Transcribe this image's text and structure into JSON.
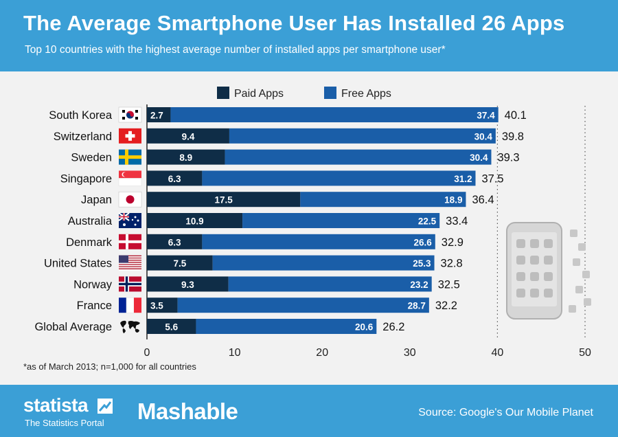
{
  "header": {
    "title": "The Average Smartphone User Has Installed 26 Apps",
    "subtitle": "Top 10 countries with the highest average number of installed apps per smartphone user*"
  },
  "footnote": "*as of March 2013; n=1,000 for all countries",
  "footer": {
    "statista_name": "statista",
    "statista_tagline": "The Statistics Portal",
    "mashable": "Mashable",
    "source": "Source: Google's Our Mobile Planet"
  },
  "colors": {
    "header_bg": "#3b9fd6",
    "chart_bg": "#f2f2f2",
    "paid": "#0f2d47",
    "free": "#1a5ea8"
  },
  "chart_data": {
    "type": "bar",
    "orientation": "horizontal",
    "stacked": true,
    "categories": [
      "South Korea",
      "Switzerland",
      "Sweden",
      "Singapore",
      "Japan",
      "Australia",
      "Denmark",
      "United States",
      "Norway",
      "France",
      "Global Average"
    ],
    "series": [
      {
        "name": "Paid Apps",
        "color": "#0f2d47",
        "values": [
          2.7,
          9.4,
          8.9,
          6.3,
          17.5,
          10.9,
          6.3,
          7.5,
          9.3,
          3.5,
          5.6
        ]
      },
      {
        "name": "Free Apps",
        "color": "#1a5ea8",
        "values": [
          37.4,
          30.4,
          30.4,
          31.2,
          18.9,
          22.5,
          26.6,
          25.3,
          23.2,
          28.7,
          20.6
        ]
      }
    ],
    "totals": [
      "40.1",
      "39.8",
      "39.3",
      "37.5",
      "36.4",
      "33.4",
      "32.9",
      "32.8",
      "32.5",
      "32.2",
      "26.2"
    ],
    "flags": [
      "south-korea-flag",
      "switzerland-flag",
      "sweden-flag",
      "singapore-flag",
      "japan-flag",
      "australia-flag",
      "denmark-flag",
      "united-states-flag",
      "norway-flag",
      "france-flag",
      "world-map-icon"
    ],
    "xlim": [
      0,
      50
    ],
    "xticks": [
      0,
      10,
      20,
      30,
      40,
      50
    ],
    "grid": "dotted vertical at 40 and 50",
    "legend": "top-center"
  }
}
